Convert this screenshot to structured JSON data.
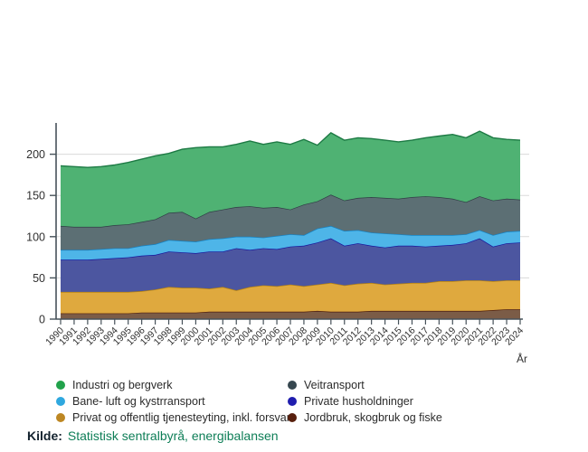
{
  "chart_data": {
    "type": "area",
    "stacked": true,
    "title": "",
    "x_label": "År",
    "ylim": [
      0,
      240
    ],
    "y_ticks": [
      0,
      50,
      100,
      150,
      200
    ],
    "grid": true,
    "legend_position": "bottom",
    "years": [
      1990,
      1991,
      1992,
      1993,
      1994,
      1995,
      1996,
      1997,
      1998,
      1999,
      2000,
      2001,
      2002,
      2003,
      2004,
      2005,
      2006,
      2007,
      2008,
      2009,
      2010,
      2011,
      2012,
      2013,
      2014,
      2015,
      2016,
      2017,
      2018,
      2019,
      2020,
      2021,
      2022,
      2023,
      2024
    ],
    "series": [
      {
        "name": "Jordbruk, skogbruk og fiske",
        "fill": "#7b5c47",
        "line": "#4e1d0c",
        "values": [
          7,
          7,
          7,
          7,
          7,
          7,
          8,
          8,
          8,
          8,
          8,
          9,
          9,
          9,
          9,
          9,
          9,
          9,
          9,
          10,
          9,
          9,
          9,
          10,
          10,
          10,
          10,
          10,
          10,
          10,
          10,
          10,
          11,
          12,
          12
        ]
      },
      {
        "name": "Privat og offentlig tjenesteyting, inkl. forsvar",
        "fill": "#dfa93e",
        "line": "#b5810e",
        "values": [
          26,
          26,
          26,
          26,
          26,
          26,
          26,
          28,
          31,
          30,
          30,
          28,
          30,
          26,
          30,
          32,
          31,
          33,
          31,
          32,
          35,
          32,
          34,
          34,
          32,
          33,
          34,
          34,
          36,
          36,
          37,
          37,
          35,
          35,
          35
        ]
      },
      {
        "name": "Private husholdninger",
        "fill": "#4c56a0",
        "line": "#17169c",
        "values": [
          39,
          39,
          39,
          40,
          41,
          42,
          43,
          42,
          43,
          43,
          42,
          45,
          43,
          51,
          45,
          45,
          45,
          46,
          49,
          51,
          54,
          48,
          49,
          45,
          45,
          46,
          45,
          44,
          43,
          44,
          45,
          51,
          42,
          45,
          46
        ]
      },
      {
        "name": "Bane- luft og kystrransport",
        "fill": "#4eb5e8",
        "line": "#1583c4",
        "values": [
          12,
          12,
          12,
          12,
          12,
          11,
          12,
          13,
          14,
          14,
          14,
          15,
          16,
          14,
          16,
          13,
          16,
          15,
          13,
          17,
          15,
          18,
          16,
          16,
          17,
          14,
          13,
          14,
          13,
          12,
          11,
          10,
          14,
          14,
          14
        ]
      },
      {
        "name": "Veitransport",
        "fill": "#5c6f74",
        "line": "#2f3e45",
        "values": [
          29,
          28,
          28,
          27,
          28,
          29,
          29,
          30,
          33,
          35,
          28,
          33,
          35,
          36,
          37,
          36,
          35,
          30,
          37,
          33,
          38,
          37,
          39,
          43,
          43,
          43,
          46,
          47,
          46,
          44,
          39,
          41,
          42,
          40,
          38
        ]
      },
      {
        "name": "Industri og bergverk",
        "fill": "#4fb273",
        "line": "#1d7a44",
        "values": [
          73,
          73,
          72,
          73,
          73,
          75,
          76,
          77,
          72,
          76,
          86,
          79,
          76,
          76,
          79,
          77,
          79,
          79,
          79,
          68,
          75,
          73,
          73,
          71,
          70,
          69,
          69,
          71,
          74,
          78,
          78,
          79,
          76,
          72,
          72
        ]
      }
    ]
  },
  "legend": {
    "columns": [
      [
        {
          "label": "Industri og bergverk",
          "color": "#21a24b"
        },
        {
          "label": "Bane- luft og kystrransport",
          "color": "#2fa8df"
        },
        {
          "label": "Privat og offentlig tjenesteyting, inkl. forsvar",
          "color": "#bd8723"
        }
      ],
      [
        {
          "label": "Veitransport",
          "color": "#36474f"
        },
        {
          "label": "Private husholdninger",
          "color": "#1f1dae"
        },
        {
          "label": "Jordbruk, skogbruk og fiske",
          "color": "#571f0d"
        }
      ]
    ]
  },
  "source": {
    "label": "Kilde:",
    "text": "Statistisk sentralbyrå, energibalansen"
  }
}
